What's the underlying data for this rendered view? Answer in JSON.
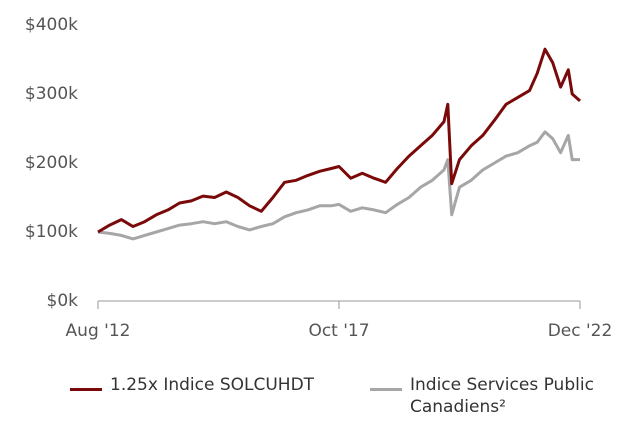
{
  "chart_data": {
    "type": "line",
    "x": [
      "2012-08",
      "2012-11",
      "2013-02",
      "2013-05",
      "2013-08",
      "2013-11",
      "2014-02",
      "2014-05",
      "2014-08",
      "2014-11",
      "2015-02",
      "2015-05",
      "2015-08",
      "2015-11",
      "2016-02",
      "2016-05",
      "2016-08",
      "2016-11",
      "2017-02",
      "2017-05",
      "2017-08",
      "2017-10",
      "2018-01",
      "2018-04",
      "2018-07",
      "2018-10",
      "2019-01",
      "2019-04",
      "2019-07",
      "2019-10",
      "2020-01",
      "2020-02",
      "2020-03",
      "2020-05",
      "2020-08",
      "2020-11",
      "2021-02",
      "2021-05",
      "2021-08",
      "2021-11",
      "2022-01",
      "2022-03",
      "2022-05",
      "2022-07",
      "2022-09",
      "2022-10",
      "2022-12"
    ],
    "series": [
      {
        "name": "1.25x Indice SOLCUHDT",
        "color": "#7a0a0a",
        "values": [
          100000,
          110000,
          118000,
          108000,
          115000,
          125000,
          132000,
          142000,
          145000,
          152000,
          150000,
          158000,
          150000,
          138000,
          130000,
          150000,
          172000,
          175000,
          182000,
          188000,
          192000,
          195000,
          178000,
          185000,
          178000,
          172000,
          192000,
          210000,
          225000,
          240000,
          260000,
          285000,
          170000,
          205000,
          225000,
          240000,
          262000,
          285000,
          295000,
          305000,
          330000,
          365000,
          345000,
          310000,
          335000,
          300000,
          290000
        ]
      },
      {
        "name": "Indice Services Public Canadiens²",
        "color": "#a6a6a6",
        "values": [
          100000,
          98000,
          95000,
          90000,
          95000,
          100000,
          105000,
          110000,
          112000,
          115000,
          112000,
          115000,
          108000,
          103000,
          108000,
          112000,
          122000,
          128000,
          132000,
          138000,
          138000,
          140000,
          130000,
          135000,
          132000,
          128000,
          140000,
          150000,
          165000,
          175000,
          190000,
          205000,
          125000,
          165000,
          175000,
          190000,
          200000,
          210000,
          215000,
          225000,
          230000,
          245000,
          235000,
          215000,
          240000,
          205000,
          205000
        ]
      }
    ],
    "ylim": [
      0,
      400000
    ],
    "yticks": [
      {
        "value": 0,
        "label": "$0k"
      },
      {
        "value": 100000,
        "label": "$100k"
      },
      {
        "value": 200000,
        "label": "$200k"
      },
      {
        "value": 300000,
        "label": "$300k"
      },
      {
        "value": 400000,
        "label": "$400k"
      }
    ],
    "xticks": [
      {
        "value": "2012-08",
        "label": "Aug '12"
      },
      {
        "value": "2017-10",
        "label": "Oct '17"
      },
      {
        "value": "2022-12",
        "label": "Dec '22"
      }
    ]
  }
}
